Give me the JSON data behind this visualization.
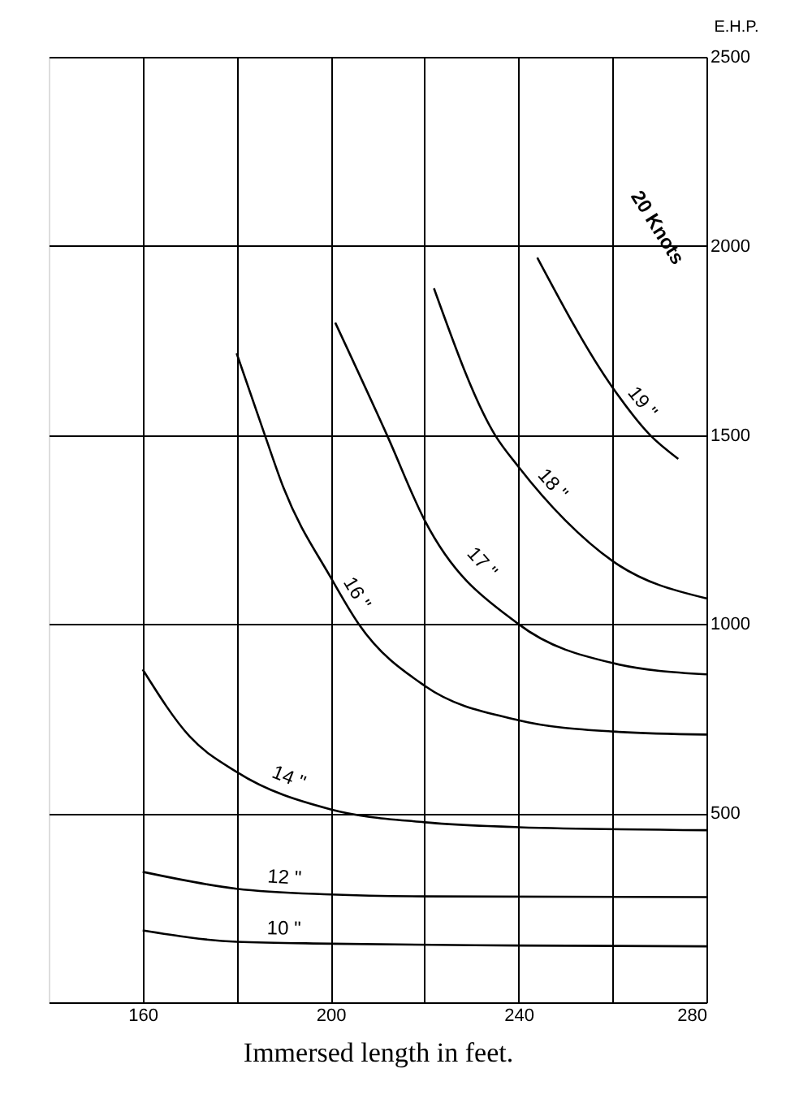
{
  "chart_data": {
    "type": "line",
    "xlabel": "Immersed length in feet.",
    "ylabel": "E.H.P.",
    "xlim": [
      140,
      280
    ],
    "ylim": [
      0,
      2500
    ],
    "xticks": [
      160,
      {
        "value": 180,
        "label": null
      },
      200,
      {
        "value": 220,
        "label": null
      },
      240,
      {
        "value": 260,
        "label": null
      },
      280
    ],
    "yticks": [
      500,
      1000,
      1500,
      2000,
      2500
    ],
    "grid": true,
    "marker": "none",
    "line_style": "solid",
    "annotations": [
      "20 Knots"
    ],
    "series": [
      {
        "name": "10 \"",
        "color": "#000000",
        "x": [
          160,
          180,
          200,
          240,
          280
        ],
        "values": [
          190,
          160,
          155,
          150,
          148
        ]
      },
      {
        "name": "12 \"",
        "color": "#000000",
        "x": [
          160,
          180,
          200,
          220,
          280
        ],
        "values": [
          345,
          300,
          285,
          280,
          278
        ]
      },
      {
        "name": "14 \"",
        "color": "#000000",
        "x": [
          160,
          170,
          180,
          200,
          220,
          240,
          280
        ],
        "values": [
          880,
          703,
          609,
          510,
          476,
          463,
          455
        ]
      },
      {
        "name": "16 \"",
        "color": "#000000",
        "x": [
          180,
          186,
          190,
          200,
          206,
          220,
          240,
          260,
          280
        ],
        "values": [
          1716,
          1500,
          1360,
          1124,
          1000,
          837,
          746,
          716,
          708
        ]
      },
      {
        "name": "17 \"",
        "color": "#000000",
        "x": [
          201,
          212,
          220,
          240,
          260,
          280
        ],
        "values": [
          1797,
          1500,
          1275,
          1000,
          897,
          867
        ]
      },
      {
        "name": "18 \"",
        "color": "#000000",
        "x": [
          222,
          235,
          240,
          250,
          260,
          280
        ],
        "values": [
          1888,
          1500,
          1416,
          1274,
          1167,
          1068
        ]
      },
      {
        "name": "19 \"",
        "color": "#000000",
        "x": [
          244,
          260,
          268,
          274
        ],
        "values": [
          1969,
          1626,
          1500,
          1437
        ]
      }
    ]
  }
}
